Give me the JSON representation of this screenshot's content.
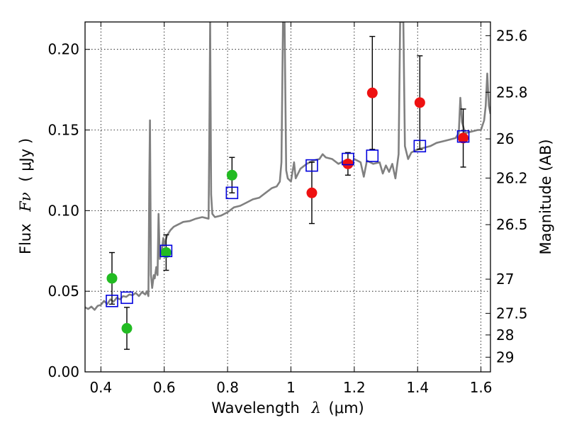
{
  "chart_data": {
    "type": "scatter",
    "title": "",
    "xlabel": "Wavelength",
    "xlabel_symbol": "λ",
    "xlabel_unit": "(μm)",
    "ylabel": "Flux",
    "ylabel_symbol": "Fν",
    "ylabel_unit": "( μJy )",
    "y2label": "Magnitude (AB)",
    "xlim": [
      0.35,
      1.63
    ],
    "ylim": [
      0.0,
      0.217
    ],
    "grid": true,
    "x_ticks": [
      0.4,
      0.6,
      0.8,
      1.0,
      1.2,
      1.4,
      1.6
    ],
    "x_tick_labels": [
      "0.4",
      "0.6",
      "0.8",
      "1",
      "1.2",
      "1.4",
      "1.6"
    ],
    "y_ticks": [
      0.0,
      0.05,
      0.1,
      0.15,
      0.2
    ],
    "y_tick_labels": [
      "0.00",
      "0.05",
      "0.10",
      "0.15",
      "0.20"
    ],
    "y2_ticks": [
      {
        "label": "25.6",
        "flux": 0.2085
      },
      {
        "label": "25.8",
        "flux": 0.1734
      },
      {
        "label": "26",
        "flux": 0.1445
      },
      {
        "label": "26.2",
        "flux": 0.1202
      },
      {
        "label": "26.5",
        "flux": 0.0913
      },
      {
        "label": "27",
        "flux": 0.0575
      },
      {
        "label": "27.5",
        "flux": 0.0363
      },
      {
        "label": "28",
        "flux": 0.0229
      },
      {
        "label": "29",
        "flux": 0.0091
      }
    ],
    "model_spectrum": {
      "color": "#808080",
      "points": [
        [
          0.35,
          0.04
        ],
        [
          0.36,
          0.039
        ],
        [
          0.37,
          0.0405
        ],
        [
          0.38,
          0.0385
        ],
        [
          0.39,
          0.041
        ],
        [
          0.4,
          0.0415
        ],
        [
          0.41,
          0.044
        ],
        [
          0.42,
          0.042
        ],
        [
          0.43,
          0.045
        ],
        [
          0.44,
          0.0435
        ],
        [
          0.45,
          0.046
        ],
        [
          0.46,
          0.045
        ],
        [
          0.47,
          0.047
        ],
        [
          0.48,
          0.0465
        ],
        [
          0.49,
          0.048
        ],
        [
          0.5,
          0.0475
        ],
        [
          0.51,
          0.049
        ],
        [
          0.52,
          0.047
        ],
        [
          0.53,
          0.0495
        ],
        [
          0.54,
          0.048
        ],
        [
          0.545,
          0.05
        ],
        [
          0.55,
          0.047
        ],
        [
          0.553,
          0.12
        ],
        [
          0.555,
          0.156
        ],
        [
          0.558,
          0.06
        ],
        [
          0.562,
          0.052
        ],
        [
          0.567,
          0.06
        ],
        [
          0.57,
          0.058
        ],
        [
          0.575,
          0.065
        ],
        [
          0.579,
          0.06
        ],
        [
          0.582,
          0.098
        ],
        [
          0.586,
          0.07
        ],
        [
          0.592,
          0.075
        ],
        [
          0.597,
          0.083
        ],
        [
          0.6,
          0.078
        ],
        [
          0.605,
          0.082
        ],
        [
          0.61,
          0.085
        ],
        [
          0.62,
          0.088
        ],
        [
          0.63,
          0.09
        ],
        [
          0.64,
          0.091
        ],
        [
          0.65,
          0.092
        ],
        [
          0.66,
          0.093
        ],
        [
          0.68,
          0.0935
        ],
        [
          0.7,
          0.095
        ],
        [
          0.72,
          0.096
        ],
        [
          0.74,
          0.095
        ],
        [
          0.743,
          0.16
        ],
        [
          0.745,
          0.217
        ],
        [
          0.748,
          0.11
        ],
        [
          0.752,
          0.098
        ],
        [
          0.76,
          0.096
        ],
        [
          0.78,
          0.097
        ],
        [
          0.8,
          0.099
        ],
        [
          0.82,
          0.102
        ],
        [
          0.84,
          0.103
        ],
        [
          0.86,
          0.105
        ],
        [
          0.88,
          0.107
        ],
        [
          0.9,
          0.108
        ],
        [
          0.92,
          0.111
        ],
        [
          0.94,
          0.114
        ],
        [
          0.955,
          0.115
        ],
        [
          0.965,
          0.118
        ],
        [
          0.97,
          0.13
        ],
        [
          0.975,
          0.217
        ],
        [
          0.98,
          0.217
        ],
        [
          0.985,
          0.125
        ],
        [
          0.99,
          0.12
        ],
        [
          1.0,
          0.118
        ],
        [
          1.01,
          0.13
        ],
        [
          1.015,
          0.12
        ],
        [
          1.03,
          0.126
        ],
        [
          1.05,
          0.129
        ],
        [
          1.07,
          0.131
        ],
        [
          1.09,
          0.132
        ],
        [
          1.1,
          0.135
        ],
        [
          1.11,
          0.133
        ],
        [
          1.13,
          0.132
        ],
        [
          1.15,
          0.129
        ],
        [
          1.17,
          0.131
        ],
        [
          1.19,
          0.129
        ],
        [
          1.2,
          0.132
        ],
        [
          1.22,
          0.13
        ],
        [
          1.23,
          0.121
        ],
        [
          1.24,
          0.131
        ],
        [
          1.26,
          0.129
        ],
        [
          1.28,
          0.13
        ],
        [
          1.29,
          0.123
        ],
        [
          1.3,
          0.128
        ],
        [
          1.31,
          0.124
        ],
        [
          1.32,
          0.129
        ],
        [
          1.33,
          0.12
        ],
        [
          1.34,
          0.135
        ],
        [
          1.345,
          0.217
        ],
        [
          1.355,
          0.217
        ],
        [
          1.36,
          0.14
        ],
        [
          1.37,
          0.132
        ],
        [
          1.38,
          0.136
        ],
        [
          1.4,
          0.138
        ],
        [
          1.42,
          0.139
        ],
        [
          1.44,
          0.14
        ],
        [
          1.46,
          0.142
        ],
        [
          1.48,
          0.143
        ],
        [
          1.5,
          0.144
        ],
        [
          1.52,
          0.145
        ],
        [
          1.53,
          0.148
        ],
        [
          1.535,
          0.17
        ],
        [
          1.54,
          0.155
        ],
        [
          1.55,
          0.148
        ],
        [
          1.57,
          0.149
        ],
        [
          1.59,
          0.15
        ],
        [
          1.6,
          0.15
        ],
        [
          1.61,
          0.156
        ],
        [
          1.615,
          0.165
        ],
        [
          1.62,
          0.185
        ],
        [
          1.625,
          0.165
        ],
        [
          1.63,
          0.16
        ]
      ]
    },
    "series": [
      {
        "name": "green-points",
        "color": "#22bb22",
        "points": [
          {
            "x": 0.435,
            "y": 0.058,
            "err": 0.016
          },
          {
            "x": 0.482,
            "y": 0.027,
            "err": 0.013
          },
          {
            "x": 0.606,
            "y": 0.074,
            "err": 0.011
          },
          {
            "x": 0.814,
            "y": 0.122,
            "err": 0.011
          }
        ]
      },
      {
        "name": "red-points",
        "color": "#ee1111",
        "points": [
          {
            "x": 1.066,
            "y": 0.111,
            "err": 0.019
          },
          {
            "x": 1.18,
            "y": 0.129,
            "err": 0.007
          },
          {
            "x": 1.257,
            "y": 0.173,
            "err": 0.035
          },
          {
            "x": 1.407,
            "y": 0.167,
            "err": 0.029
          },
          {
            "x": 1.544,
            "y": 0.145,
            "err": 0.018
          }
        ]
      },
      {
        "name": "blue-model-points",
        "color": "#0000dd",
        "points": [
          {
            "x": 0.435,
            "y": 0.044
          },
          {
            "x": 0.482,
            "y": 0.046
          },
          {
            "x": 0.606,
            "y": 0.075
          },
          {
            "x": 0.814,
            "y": 0.111
          },
          {
            "x": 1.066,
            "y": 0.128
          },
          {
            "x": 1.18,
            "y": 0.132
          },
          {
            "x": 1.257,
            "y": 0.134
          },
          {
            "x": 1.407,
            "y": 0.14
          },
          {
            "x": 1.544,
            "y": 0.146
          }
        ]
      }
    ]
  }
}
